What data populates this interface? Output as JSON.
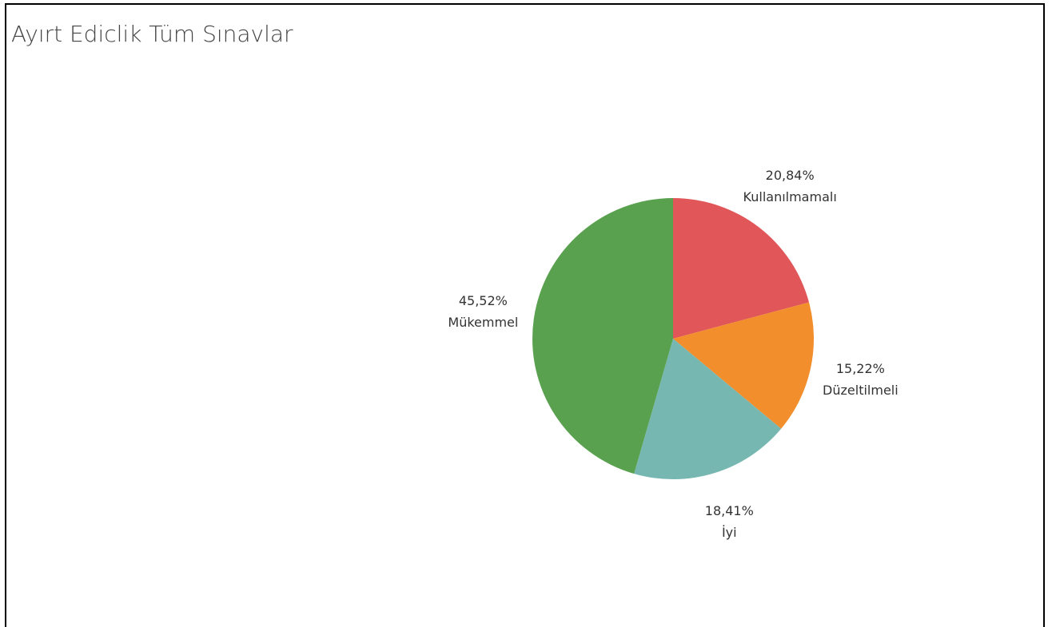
{
  "chart_data": {
    "type": "pie",
    "title": "Ayırt Ediclik Tüm  Sınavlar",
    "categories": [
      "Kullanılmamalı",
      "Düzeltilmeli",
      "İyi",
      "Mükemmel"
    ],
    "values": [
      20.84,
      15.22,
      18.41,
      45.52
    ],
    "value_labels": [
      "20,84%",
      "15,22%",
      "18,41%",
      "45,52%"
    ],
    "colors": [
      "#e15759",
      "#f28e2b",
      "#76b7b2",
      "#59a14f"
    ]
  }
}
